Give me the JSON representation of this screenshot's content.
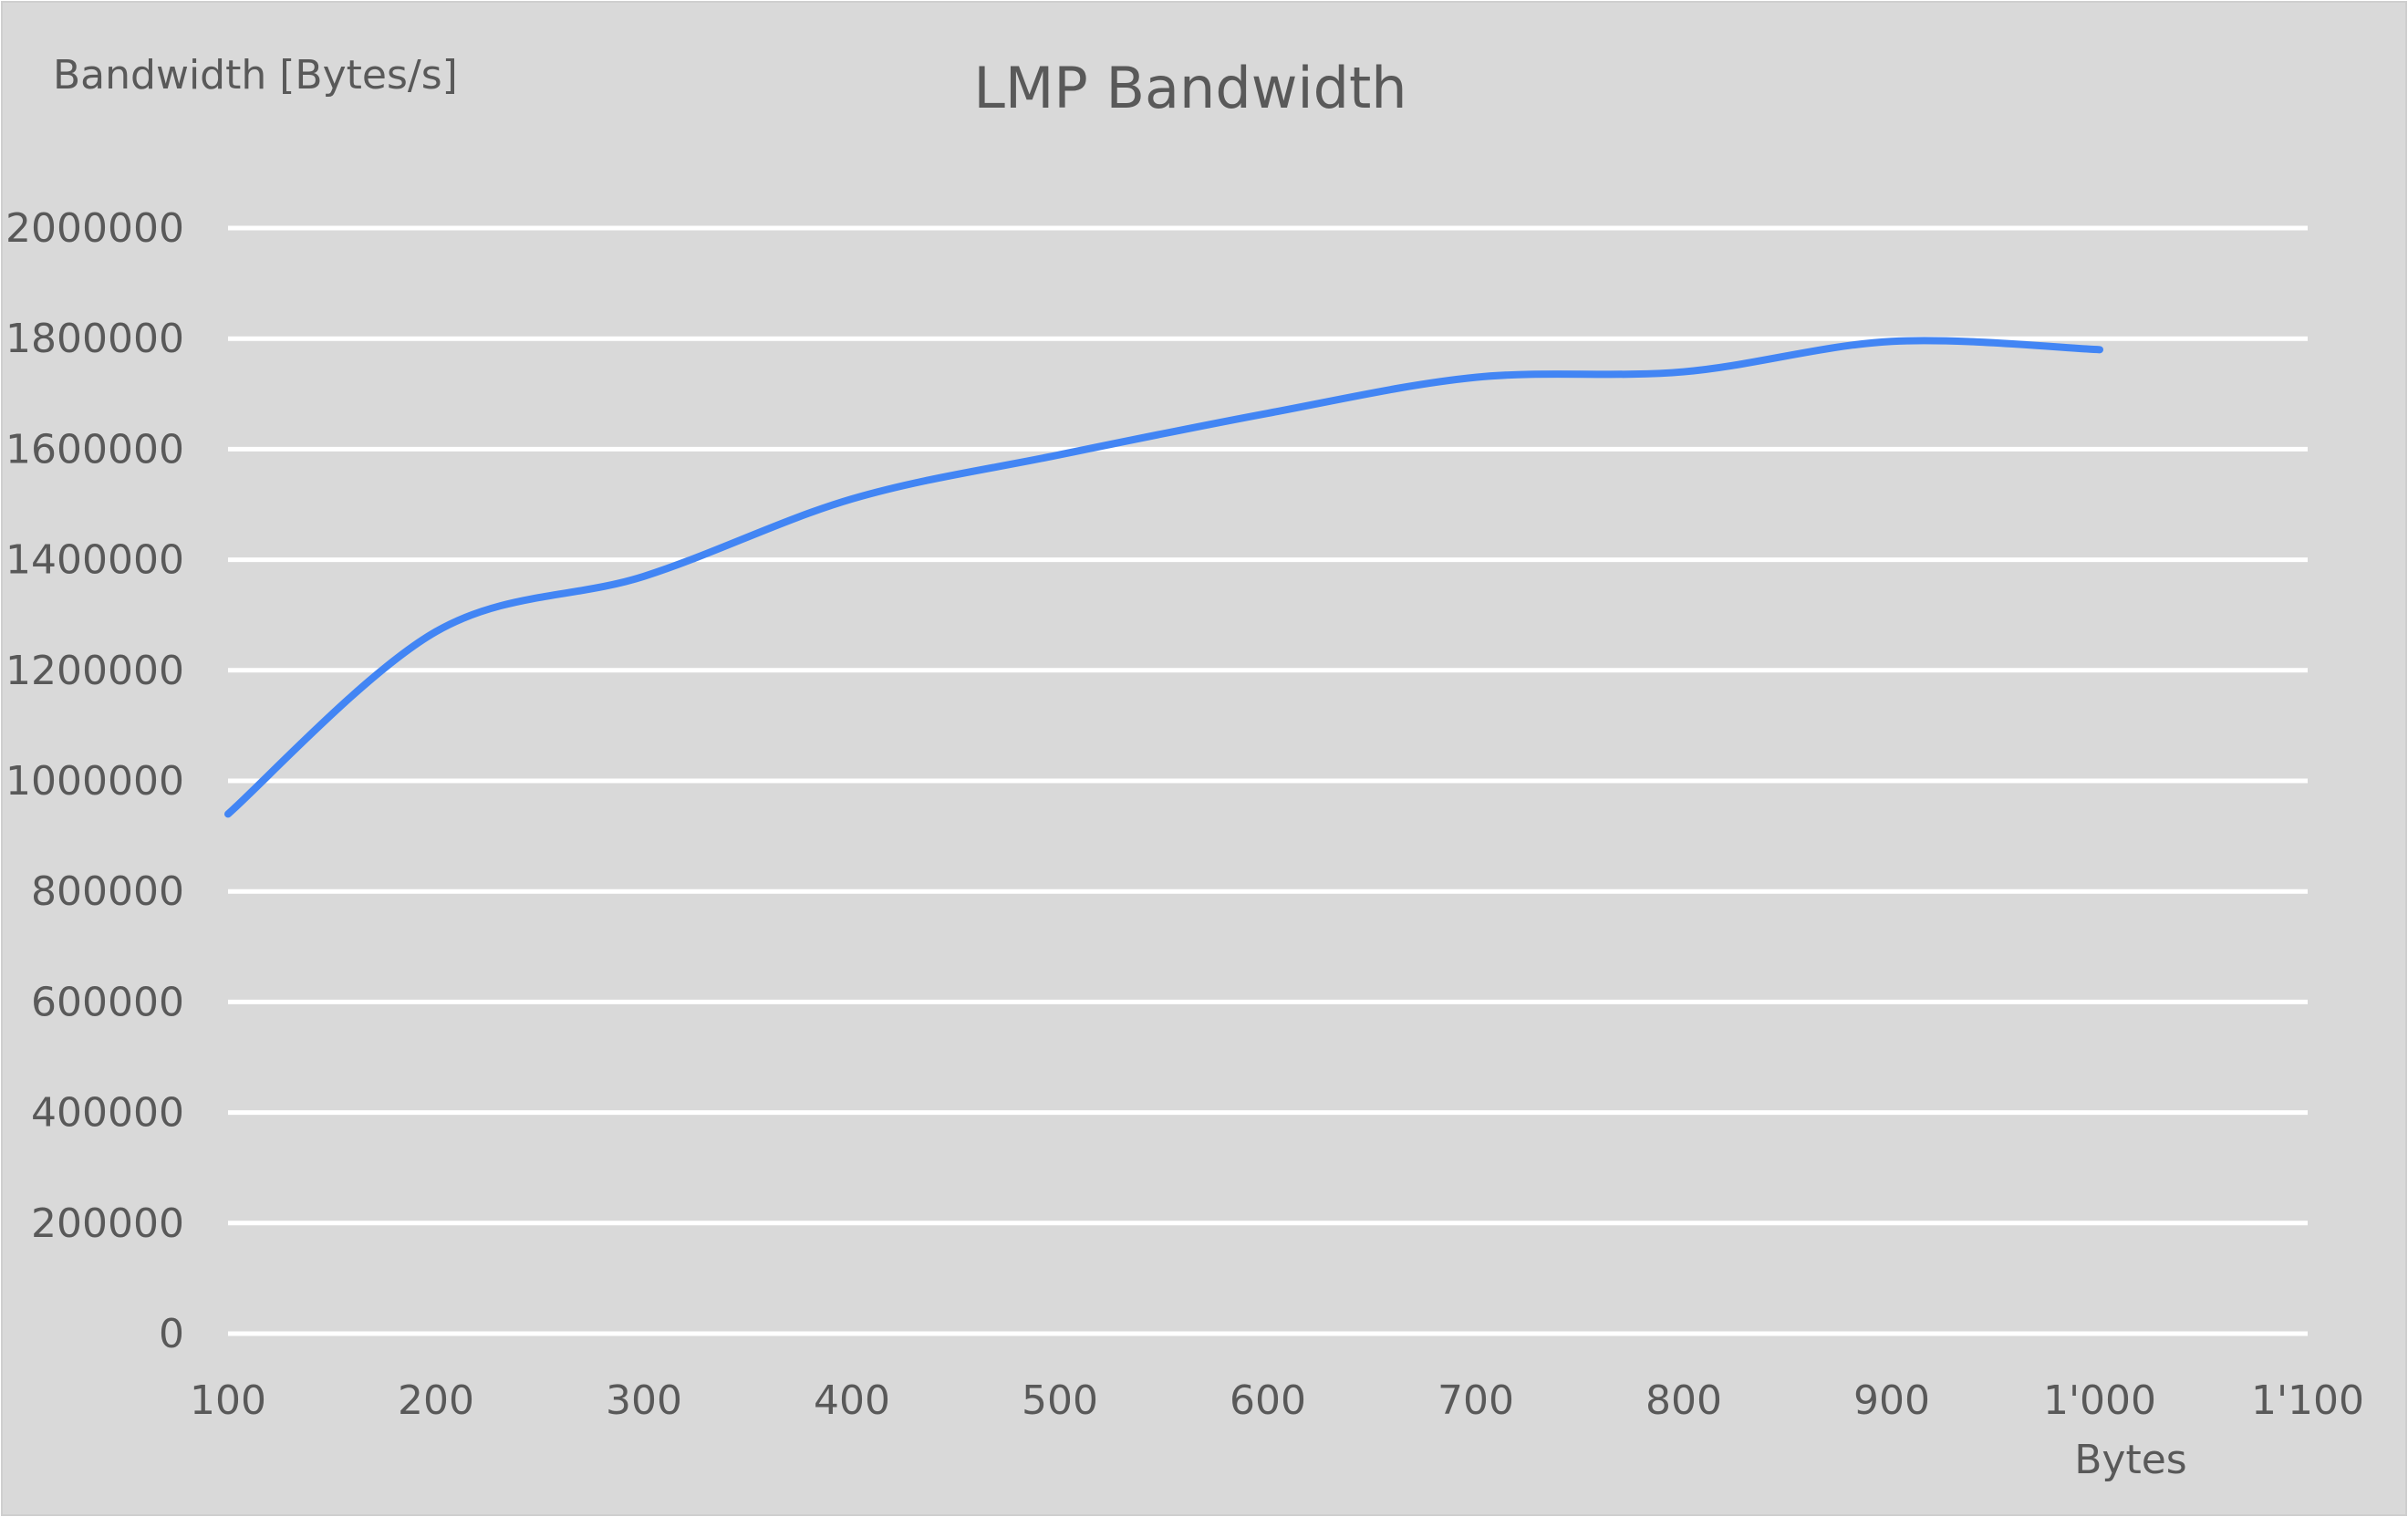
{
  "chart_data": {
    "type": "line",
    "title": "LMP Bandwidth",
    "xlabel": "Bytes",
    "ylabel": "Bandwidth [Bytes/s]",
    "xlim": [
      100,
      1100
    ],
    "ylim": [
      0,
      2000000
    ],
    "x_ticks": [
      "100",
      "200",
      "300",
      "400",
      "500",
      "600",
      "700",
      "800",
      "900",
      "1'000",
      "1'100"
    ],
    "y_ticks": [
      "0",
      "200000",
      "400000",
      "600000",
      "800000",
      "1000000",
      "1200000",
      "1400000",
      "1600000",
      "1800000",
      "2000000"
    ],
    "grid": true,
    "legend": "none",
    "series": [
      {
        "x": [
          100,
          200,
          300,
          400,
          500,
          600,
          700,
          800,
          900,
          1000
        ],
        "y": [
          940000,
          1270000,
          1370000,
          1510000,
          1590000,
          1665000,
          1730000,
          1740000,
          1795000,
          1780000
        ],
        "color": "#4285F4",
        "smooth": true
      }
    ]
  },
  "colors": {
    "background": "#D9D9D9",
    "grid": "#FFFFFF",
    "text": "#595959",
    "line": "#4285F4"
  }
}
